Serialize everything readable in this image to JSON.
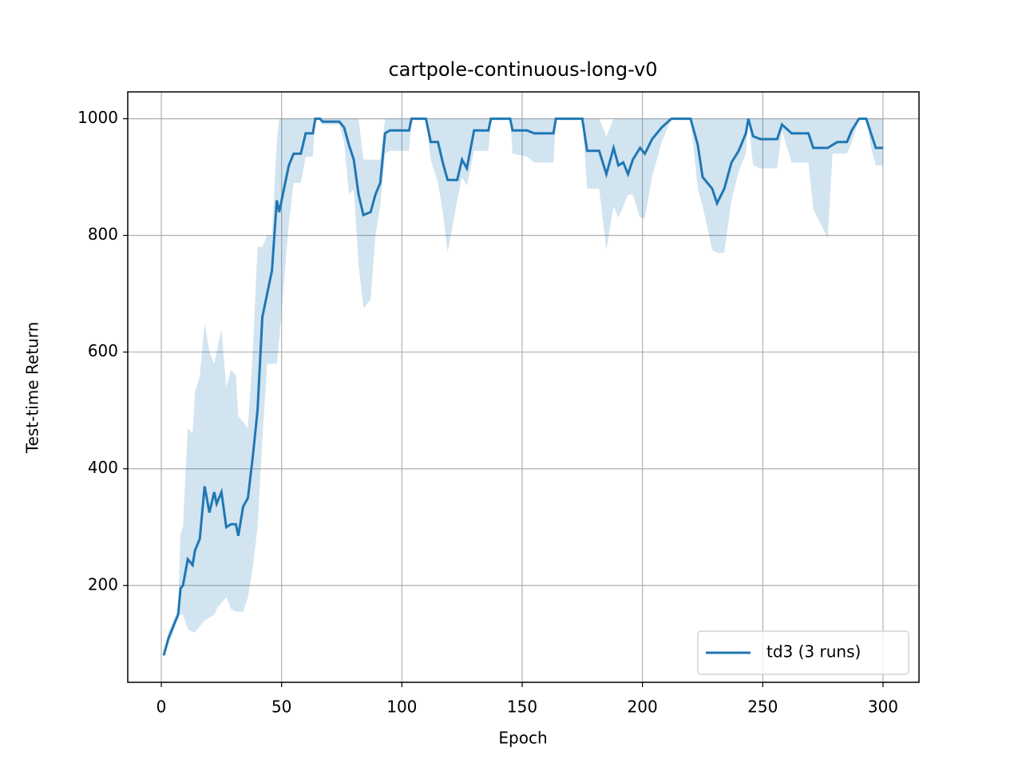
{
  "chart_data": {
    "type": "line",
    "title": "cartpole-continuous-long-v0",
    "xlabel": "Epoch",
    "ylabel": "Test-time Return",
    "xlim": [
      -13.95,
      314.95
    ],
    "ylim": [
      34,
      1046
    ],
    "xticks": [
      0,
      50,
      100,
      150,
      200,
      250,
      300
    ],
    "yticks": [
      200,
      400,
      600,
      800,
      1000
    ],
    "grid": true,
    "legend": "lower right",
    "x": [
      1,
      3,
      5,
      7,
      8,
      9,
      11,
      13,
      14,
      16,
      18,
      20,
      22,
      23,
      25,
      27,
      29,
      31,
      32,
      34,
      36,
      38,
      40,
      42,
      44,
      46,
      48,
      49,
      51,
      53,
      55,
      58,
      60,
      63,
      64,
      66,
      67,
      74,
      76,
      78,
      80,
      82,
      84,
      87,
      89,
      91,
      93,
      95,
      103,
      104,
      110,
      112,
      115,
      117,
      119,
      123,
      125,
      127,
      130,
      136,
      137,
      145,
      146,
      152,
      155,
      163,
      164,
      175,
      177,
      182,
      185,
      188,
      190,
      192,
      194,
      196,
      199,
      201,
      204,
      208,
      212,
      220,
      223,
      225,
      229,
      231,
      234,
      237,
      240,
      243,
      244,
      246,
      249,
      256,
      258,
      262,
      269,
      271,
      277,
      279,
      281,
      285,
      287,
      290,
      293,
      295,
      297,
      300
    ],
    "series": [
      {
        "name": "td3 (3 runs)",
        "color": "#1f77b4",
        "values": [
          80,
          110,
          130,
          150,
          195,
          200,
          245,
          235,
          260,
          280,
          370,
          325,
          360,
          340,
          360,
          300,
          305,
          305,
          285,
          335,
          350,
          420,
          500,
          660,
          700,
          740,
          860,
          840,
          880,
          920,
          940,
          940,
          975,
          975,
          1000,
          1000,
          995,
          995,
          985,
          955,
          930,
          870,
          835,
          840,
          870,
          890,
          975,
          980,
          980,
          1000,
          1000,
          960,
          960,
          925,
          895,
          895,
          930,
          915,
          980,
          980,
          1000,
          1000,
          980,
          980,
          975,
          975,
          1000,
          1000,
          945,
          945,
          905,
          950,
          920,
          925,
          905,
          930,
          950,
          940,
          965,
          985,
          1000,
          1000,
          955,
          900,
          880,
          855,
          880,
          925,
          945,
          975,
          1000,
          970,
          965,
          965,
          990,
          975,
          975,
          950,
          950,
          955,
          960,
          960,
          980,
          1000,
          1000,
          975,
          950,
          950
        ],
        "lower": [
          80,
          100,
          120,
          150,
          150,
          150,
          125,
          120,
          120,
          130,
          140,
          145,
          150,
          160,
          170,
          180,
          160,
          155,
          155,
          155,
          180,
          230,
          300,
          450,
          580,
          580,
          580,
          620,
          720,
          820,
          890,
          890,
          935,
          935,
          1000,
          1000,
          990,
          990,
          960,
          870,
          880,
          750,
          675,
          690,
          800,
          850,
          940,
          945,
          945,
          1000,
          1000,
          930,
          890,
          840,
          770,
          860,
          900,
          885,
          945,
          945,
          1000,
          1000,
          940,
          935,
          925,
          925,
          1000,
          1000,
          880,
          880,
          775,
          850,
          830,
          850,
          870,
          870,
          830,
          830,
          900,
          960,
          1000,
          1000,
          880,
          850,
          775,
          770,
          770,
          860,
          910,
          940,
          1000,
          920,
          915,
          915,
          980,
          925,
          925,
          845,
          795,
          940,
          940,
          940,
          960,
          1000,
          1000,
          950,
          920,
          920
        ],
        "upper": [
          80,
          120,
          140,
          160,
          290,
          300,
          470,
          460,
          530,
          560,
          650,
          600,
          580,
          600,
          640,
          540,
          570,
          560,
          490,
          480,
          470,
          600,
          780,
          780,
          800,
          800,
          960,
          1000,
          1000,
          1000,
          1000,
          1000,
          1000,
          1000,
          1000,
          1000,
          1000,
          1000,
          1000,
          1000,
          1000,
          1000,
          930,
          930,
          930,
          930,
          1000,
          1000,
          1000,
          1000,
          1000,
          1000,
          1000,
          1000,
          1000,
          1000,
          1000,
          1000,
          1000,
          1000,
          1000,
          1000,
          1000,
          1000,
          1000,
          1000,
          1000,
          1000,
          1000,
          1000,
          970,
          1000,
          1000,
          1000,
          1000,
          1000,
          1000,
          1000,
          1000,
          1000,
          1000,
          1000,
          1000,
          1000,
          1000,
          1000,
          1000,
          1000,
          1000,
          1000,
          1000,
          1000,
          1000,
          1000,
          1000,
          1000,
          1000,
          1000,
          1000,
          1000,
          1000,
          1000,
          1000,
          1000,
          1000,
          1000,
          1000,
          1000
        ]
      }
    ]
  }
}
